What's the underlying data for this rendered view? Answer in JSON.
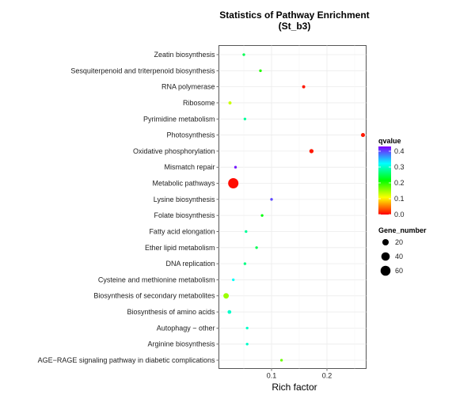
{
  "chart_data": {
    "type": "scatter",
    "title": "Statistics of Pathway Enrichment",
    "subtitle": "(St_b3)",
    "xlabel": "Rich factor",
    "ylabel": "",
    "xlim": [
      0.0,
      0.275
    ],
    "x_ticks": [
      0.1,
      0.2
    ],
    "grid": true,
    "legend_position": "right",
    "categories": [
      "AGE−RAGE signaling pathway in diabetic complications",
      "Arginine biosynthesis",
      "Autophagy − other",
      "Biosynthesis of amino acids",
      "Biosynthesis of secondary metabolites",
      "Cysteine and methionine metabolism",
      "DNA replication",
      "Ether lipid metabolism",
      "Fatty acid elongation",
      "Folate biosynthesis",
      "Lysine biosynthesis",
      "Metabolic pathways",
      "Mismatch repair",
      "Oxidative phosphorylation",
      "Photosynthesis",
      "Pyrimidine metabolism",
      "Ribosome",
      "RNA polymerase",
      "Sesquiterpenoid and triterpenoid biosynthesis",
      "Zeatin biosynthesis"
    ],
    "points": [
      {
        "pathway": "AGE−RAGE signaling pathway in diabetic complications",
        "rich_factor": 0.118,
        "qvalue": 0.17,
        "gene_number": 1
      },
      {
        "pathway": "Arginine biosynthesis",
        "rich_factor": 0.056,
        "qvalue": 0.3,
        "gene_number": 1
      },
      {
        "pathway": "Autophagy − other",
        "rich_factor": 0.056,
        "qvalue": 0.3,
        "gene_number": 1
      },
      {
        "pathway": "Biosynthesis of amino acids",
        "rich_factor": 0.024,
        "qvalue": 0.3,
        "gene_number": 4
      },
      {
        "pathway": "Biosynthesis of secondary metabolites",
        "rich_factor": 0.018,
        "qvalue": 0.15,
        "gene_number": 13
      },
      {
        "pathway": "Cysteine and methionine metabolism",
        "rich_factor": 0.031,
        "qvalue": 0.32,
        "gene_number": 1
      },
      {
        "pathway": "DNA replication",
        "rich_factor": 0.052,
        "qvalue": 0.27,
        "gene_number": 1
      },
      {
        "pathway": "Ether lipid metabolism",
        "rich_factor": 0.073,
        "qvalue": 0.25,
        "gene_number": 1
      },
      {
        "pathway": "Fatty acid elongation",
        "rich_factor": 0.054,
        "qvalue": 0.28,
        "gene_number": 1
      },
      {
        "pathway": "Folate biosynthesis",
        "rich_factor": 0.083,
        "qvalue": 0.22,
        "gene_number": 1
      },
      {
        "pathway": "Lysine biosynthesis",
        "rich_factor": 0.1,
        "qvalue": 0.4,
        "gene_number": 1
      },
      {
        "pathway": "Metabolic pathways",
        "rich_factor": 0.031,
        "qvalue": 0.005,
        "gene_number": 65
      },
      {
        "pathway": "Mismatch repair",
        "rich_factor": 0.035,
        "qvalue": 0.42,
        "gene_number": 1
      },
      {
        "pathway": "Oxidative phosphorylation",
        "rich_factor": 0.172,
        "qvalue": 0.01,
        "gene_number": 6
      },
      {
        "pathway": "Photosynthesis",
        "rich_factor": 0.265,
        "qvalue": 0.01,
        "gene_number": 5
      },
      {
        "pathway": "Pyrimidine metabolism",
        "rich_factor": 0.052,
        "qvalue": 0.28,
        "gene_number": 1
      },
      {
        "pathway": "Ribosome",
        "rich_factor": 0.025,
        "qvalue": 0.13,
        "gene_number": 2
      },
      {
        "pathway": "RNA polymerase",
        "rich_factor": 0.158,
        "qvalue": 0.01,
        "gene_number": 2
      },
      {
        "pathway": "Sesquiterpenoid and triterpenoid biosynthesis",
        "rich_factor": 0.08,
        "qvalue": 0.2,
        "gene_number": 1
      },
      {
        "pathway": "Zeatin biosynthesis",
        "rich_factor": 0.05,
        "qvalue": 0.25,
        "gene_number": 1
      }
    ],
    "color_legend": {
      "title": "qvalue",
      "ticks": [
        0.0,
        0.1,
        0.2,
        0.3,
        0.4
      ],
      "range": [
        0.0,
        0.43
      ],
      "colors": [
        "#ff0000",
        "#ffff00",
        "#00ff00",
        "#00ffff",
        "#7f00ff"
      ]
    },
    "size_legend": {
      "title": "Gene_number",
      "values": [
        20,
        40,
        60
      ]
    }
  }
}
